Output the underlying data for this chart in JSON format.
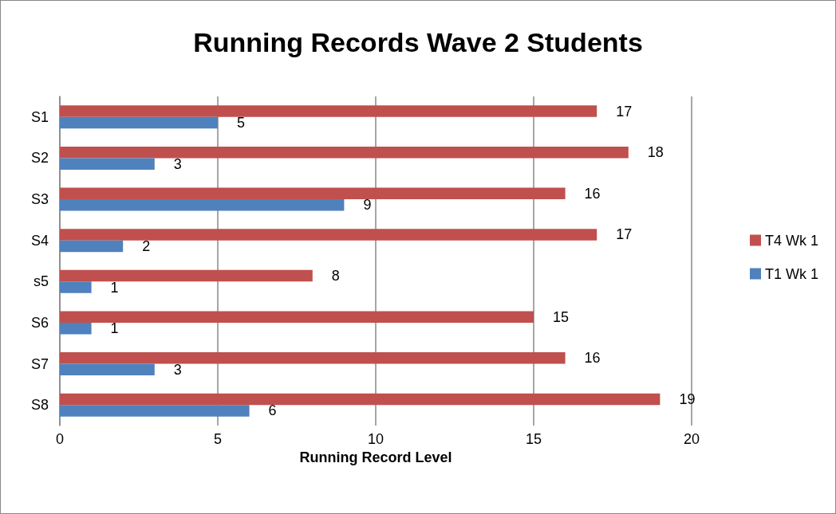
{
  "chart_data": {
    "type": "bar",
    "title": "Running Records Wave 2 Students",
    "xlabel": "Running Record Level",
    "orientation": "horizontal",
    "categories": [
      "S1",
      "S2",
      "S3",
      "S4",
      "s5",
      "S6",
      "S7",
      "S8"
    ],
    "series": [
      {
        "name": "T4 Wk 1",
        "color": "#c0504d",
        "values": [
          17,
          18,
          16,
          17,
          8,
          15,
          16,
          19
        ]
      },
      {
        "name": "T1 Wk 1",
        "color": "#4f81bd",
        "values": [
          5,
          3,
          9,
          2,
          1,
          1,
          3,
          6
        ]
      }
    ],
    "xlim": [
      0,
      20
    ],
    "xticks": [
      0,
      5,
      10,
      15,
      20
    ],
    "grid": "x",
    "legend": "right",
    "data_labels": true
  }
}
